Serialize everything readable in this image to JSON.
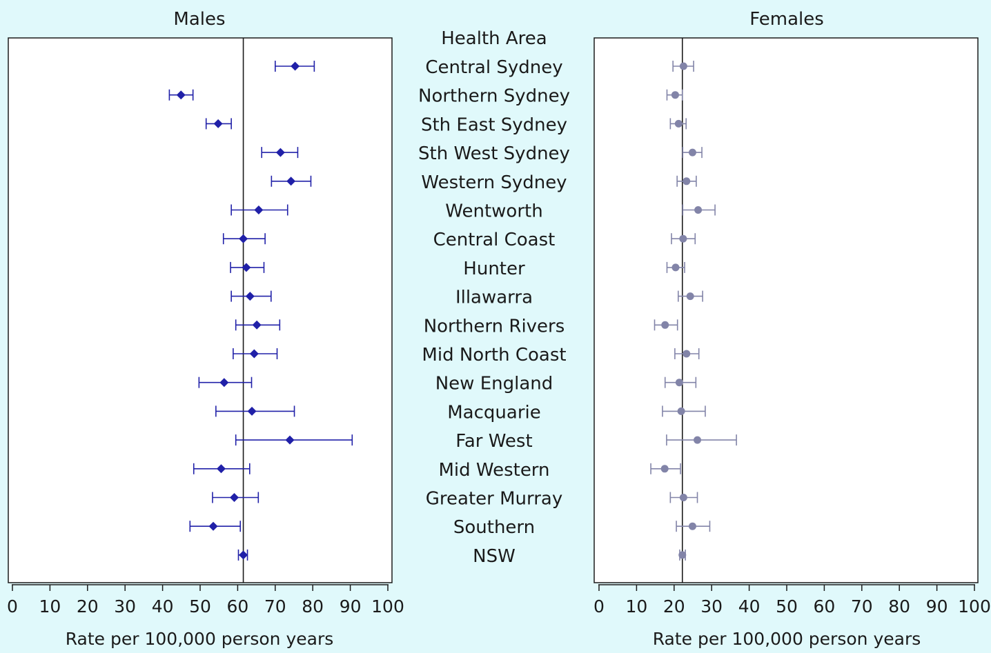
{
  "chart_data": [
    {
      "type": "forest",
      "title": "Males",
      "xlabel": "Rate per 100,000 person years",
      "xlim": [
        0,
        100
      ],
      "xticks": [
        0,
        10,
        20,
        30,
        40,
        50,
        60,
        70,
        80,
        90,
        100
      ],
      "reference": 61.5,
      "color": "#2020a8",
      "marker": "diamond",
      "categories": [
        "Central Sydney",
        "Northern Sydney",
        "Sth East Sydney",
        "Sth West Sydney",
        "Western Sydney",
        "Wentworth",
        "Central Coast",
        "Hunter",
        "Illawarra",
        "Northern Rivers",
        "Mid North Coast",
        "New England",
        "Macquarie",
        "Far West",
        "Mid Western",
        "Greater Murray",
        "Southern",
        "NSW"
      ],
      "estimate": [
        75.3,
        44.9,
        54.8,
        71.4,
        74.2,
        65.6,
        61.5,
        62.3,
        63.3,
        65.1,
        64.4,
        56.4,
        63.8,
        73.9,
        55.6,
        59.1,
        53.5,
        61.5
      ],
      "lower": [
        70.0,
        41.8,
        51.6,
        66.4,
        69.0,
        58.3,
        56.2,
        58.1,
        58.3,
        59.5,
        58.8,
        49.7,
        54.2,
        59.5,
        48.3,
        53.3,
        47.3,
        60.2
      ],
      "upper": [
        80.4,
        48.1,
        58.3,
        76.0,
        79.5,
        73.3,
        67.3,
        67.0,
        68.9,
        71.2,
        70.5,
        63.7,
        75.1,
        90.5,
        63.2,
        65.5,
        60.7,
        62.6
      ]
    },
    {
      "type": "forest",
      "title": "Females",
      "xlabel": "Rate per 100,000 person years",
      "xlim": [
        0,
        100
      ],
      "xticks": [
        0,
        10,
        20,
        30,
        40,
        50,
        60,
        70,
        80,
        90,
        100
      ],
      "reference": 22.2,
      "color": "#8284a8",
      "marker": "circle",
      "categories": [
        "Central Sydney",
        "Northern Sydney",
        "Sth East Sydney",
        "Sth West Sydney",
        "Western Sydney",
        "Wentworth",
        "Central Coast",
        "Hunter",
        "Illawarra",
        "Northern Rivers",
        "Mid North Coast",
        "New England",
        "Macquarie",
        "Far West",
        "Mid Western",
        "Greater Murray",
        "Southern",
        "NSW"
      ],
      "estimate": [
        22.5,
        20.3,
        21.2,
        24.9,
        23.3,
        26.4,
        22.4,
        20.4,
        24.3,
        17.6,
        23.3,
        21.4,
        21.9,
        26.2,
        17.5,
        22.5,
        24.9,
        22.2
      ],
      "lower": [
        19.7,
        18.1,
        19.0,
        22.3,
        20.8,
        22.3,
        19.3,
        18.1,
        21.1,
        14.8,
        20.2,
        17.6,
        16.9,
        18.0,
        13.8,
        19.0,
        20.6,
        21.5
      ],
      "upper": [
        25.2,
        22.2,
        23.2,
        27.4,
        25.9,
        30.9,
        25.6,
        22.8,
        27.6,
        20.9,
        26.6,
        25.8,
        28.3,
        36.6,
        21.7,
        26.2,
        29.5,
        23.0
      ]
    }
  ],
  "labels": {
    "column_header": "Health Area"
  }
}
